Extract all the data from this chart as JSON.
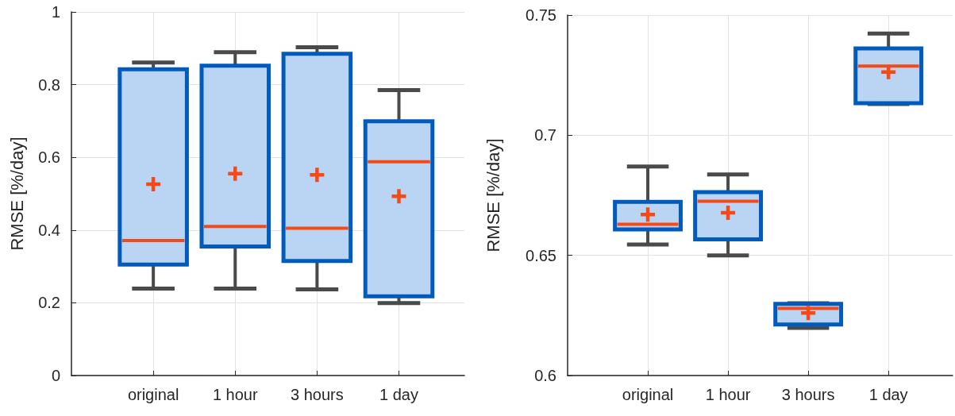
{
  "chart_data": [
    {
      "type": "box",
      "ylabel": "RMSE [%/day]",
      "categories": [
        "original",
        "1 hour",
        "3 hours",
        "1 day"
      ],
      "color": "#005bbd",
      "ylim": [
        0,
        1
      ],
      "yticks": [
        0,
        0.2,
        0.4,
        0.6,
        0.8,
        1
      ],
      "grid": true,
      "boxes": [
        {
          "low": 0.239,
          "q1": 0.305,
          "median": 0.371,
          "q3": 0.842,
          "high": 0.861,
          "mean": 0.526
        },
        {
          "low": 0.239,
          "q1": 0.355,
          "median": 0.41,
          "q3": 0.852,
          "high": 0.889,
          "mean": 0.555
        },
        {
          "low": 0.237,
          "q1": 0.315,
          "median": 0.405,
          "q3": 0.885,
          "high": 0.903,
          "mean": 0.552
        },
        {
          "low": 0.199,
          "q1": 0.218,
          "median": 0.588,
          "q3": 0.699,
          "high": 0.785,
          "mean": 0.493
        }
      ]
    },
    {
      "type": "box",
      "ylabel": "RMSE [%/day]",
      "categories": [
        "original",
        "1 hour",
        "3 hours",
        "1 day"
      ],
      "color": "#005bbd",
      "ylim": [
        0.6,
        0.75
      ],
      "yticks": [
        0.6,
        0.65,
        0.7,
        0.75
      ],
      "grid": true,
      "boxes": [
        {
          "low": 0.6545,
          "q1": 0.6608,
          "median": 0.6629,
          "q3": 0.6723,
          "high": 0.687,
          "mean": 0.667
        },
        {
          "low": 0.65,
          "q1": 0.6567,
          "median": 0.6725,
          "q3": 0.6763,
          "high": 0.6837,
          "mean": 0.6677
        },
        {
          "low": 0.6198,
          "q1": 0.6212,
          "median": 0.6279,
          "q3": 0.6298,
          "high": 0.6301,
          "mean": 0.626
        },
        {
          "low": 0.713,
          "q1": 0.7133,
          "median": 0.7288,
          "q3": 0.7361,
          "high": 0.7423,
          "mean": 0.7263
        }
      ]
    }
  ]
}
